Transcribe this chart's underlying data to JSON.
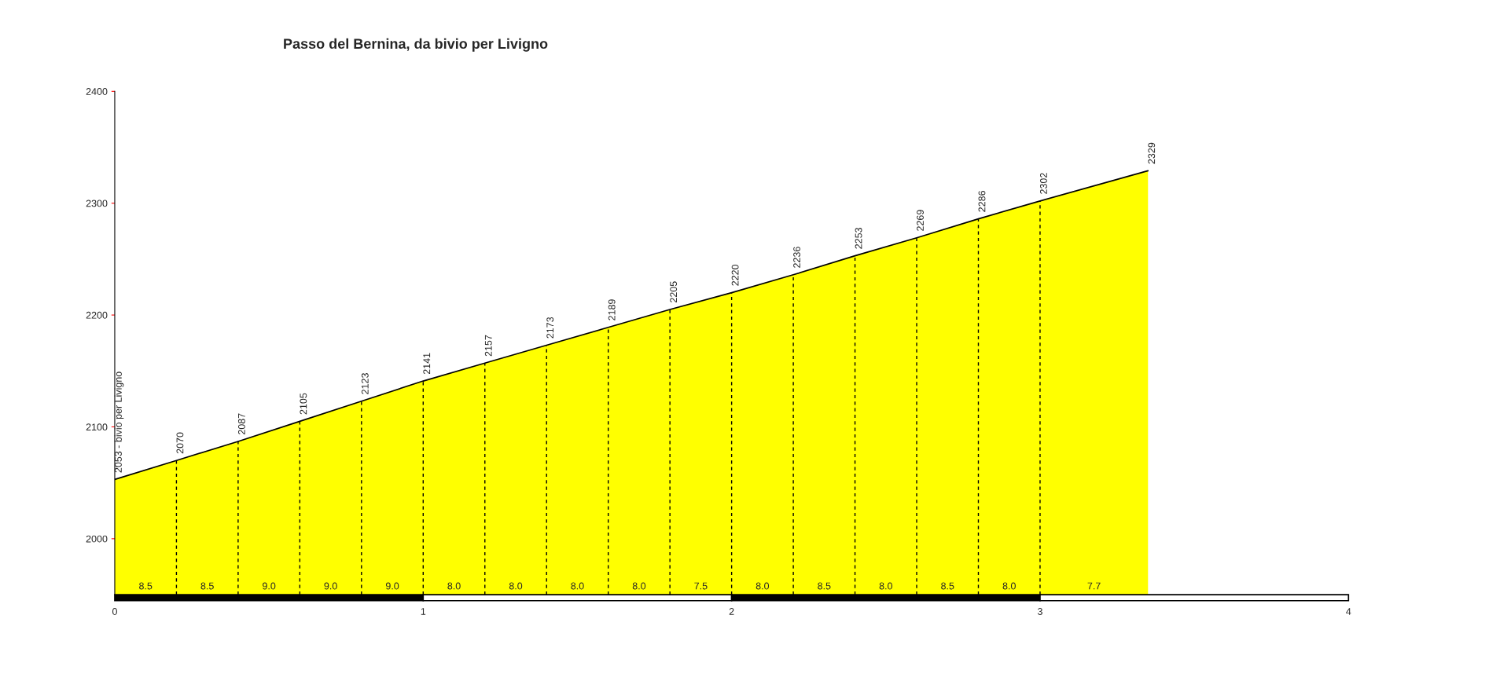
{
  "chart_data": {
    "type": "area",
    "title": "Passo del Bernina, da bivio per Livigno",
    "x": [
      0,
      0.2,
      0.4,
      0.6,
      0.8,
      1.0,
      1.2,
      1.4,
      1.6,
      1.8,
      2.0,
      2.2,
      2.4,
      2.6,
      2.8,
      3.0,
      3.35
    ],
    "series": [
      {
        "color": "#ffff00",
        "values": [
          2053,
          2070,
          2087,
          2105,
          2123,
          2141,
          2157,
          2173,
          2189,
          2205,
          2220,
          2236,
          2253,
          2269,
          2286,
          2302,
          2329
        ],
        "value_labels": [
          "2053 - bivio per Livigno",
          "2070",
          "2087",
          "2105",
          "2123",
          "2141",
          "2157",
          "2173",
          "2189",
          "2205",
          "2220",
          "2236",
          "2253",
          "2269",
          "2286",
          "2302",
          "2329"
        ]
      }
    ],
    "xlim": [
      0,
      4
    ],
    "xticks": [
      0,
      1,
      2,
      3,
      4
    ],
    "ylim": [
      1950,
      2400
    ],
    "yticks": [
      2000,
      2100,
      2200,
      2300,
      2400
    ],
    "line_style": "dashed",
    "legend": false,
    "annotations": [
      {
        "text": "8.5",
        "x": 0.1,
        "y": 1950
      },
      {
        "text": "8.5",
        "x": 0.3,
        "y": 1950
      },
      {
        "text": "9.0",
        "x": 0.5,
        "y": 1950
      },
      {
        "text": "9.0",
        "x": 0.7,
        "y": 1950
      },
      {
        "text": "9.0",
        "x": 0.9,
        "y": 1950
      },
      {
        "text": "8.0",
        "x": 1.1,
        "y": 1950
      },
      {
        "text": "8.0",
        "x": 1.3,
        "y": 1950
      },
      {
        "text": "8.0",
        "x": 1.5,
        "y": 1950
      },
      {
        "text": "8.0",
        "x": 1.7,
        "y": 1950
      },
      {
        "text": "7.5",
        "x": 1.9,
        "y": 1950
      },
      {
        "text": "8.0",
        "x": 2.1,
        "y": 1950
      },
      {
        "text": "8.5",
        "x": 2.3,
        "y": 1950
      },
      {
        "text": "8.0",
        "x": 2.5,
        "y": 1950
      },
      {
        "text": "8.5",
        "x": 2.7,
        "y": 1950
      },
      {
        "text": "8.0",
        "x": 2.9,
        "y": 1950
      },
      {
        "text": "7.7",
        "x": 3.175,
        "y": 1950
      }
    ]
  }
}
